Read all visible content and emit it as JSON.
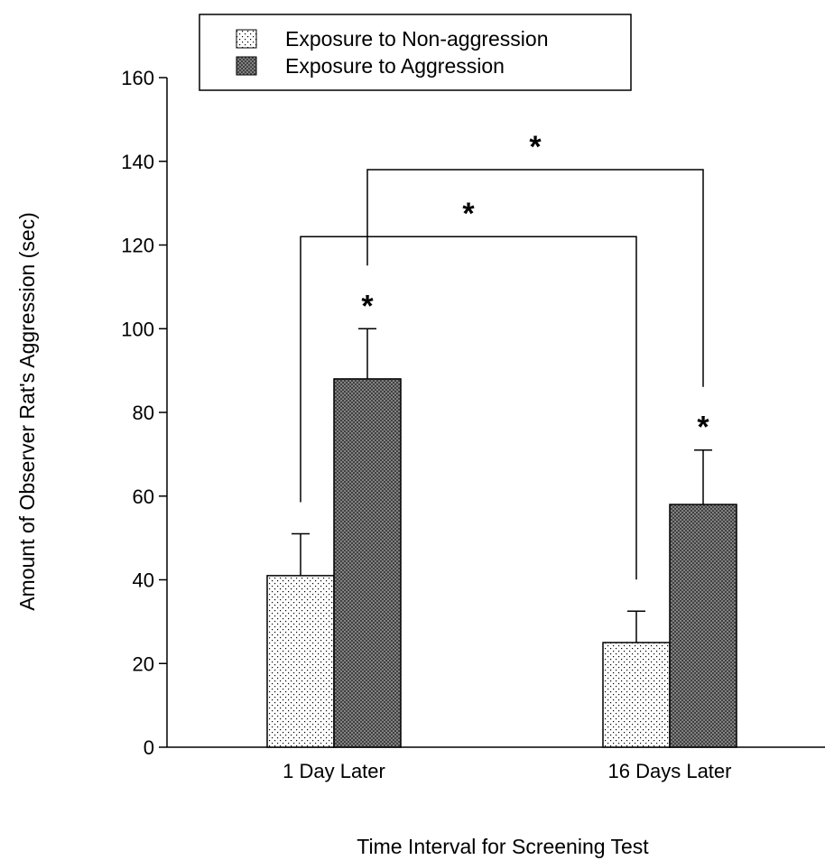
{
  "chart_data": {
    "type": "bar",
    "title": "",
    "xlabel": "Time Interval for Screening Test",
    "ylabel": "Amount of Observer Rat's Aggression (sec)",
    "ylim": [
      0,
      160
    ],
    "yticks": [
      0,
      20,
      40,
      60,
      80,
      100,
      120,
      140,
      160
    ],
    "categories": [
      "1 Day Later",
      "16 Days Later"
    ],
    "series": [
      {
        "name": "Exposure to Non-aggression",
        "values": [
          41,
          25
        ],
        "error": [
          10,
          7.5
        ],
        "pattern": "dotted",
        "color": "#ffffff"
      },
      {
        "name": "Exposure to Aggression",
        "values": [
          88,
          58
        ],
        "error": [
          12,
          13
        ],
        "pattern": "crosshatch",
        "color": "#6e6e6e"
      }
    ],
    "legend": {
      "position": "top-center"
    },
    "grid": false,
    "significance": {
      "marker": "*",
      "bar_markers": [
        {
          "category": 0,
          "series": 1
        },
        {
          "category": 1,
          "series": 1
        }
      ],
      "brackets": [
        {
          "from_category": 0,
          "to_category": 1,
          "series": 0,
          "level": 122
        },
        {
          "from_category": 0,
          "to_category": 1,
          "series": 1,
          "level": 138
        }
      ]
    }
  }
}
